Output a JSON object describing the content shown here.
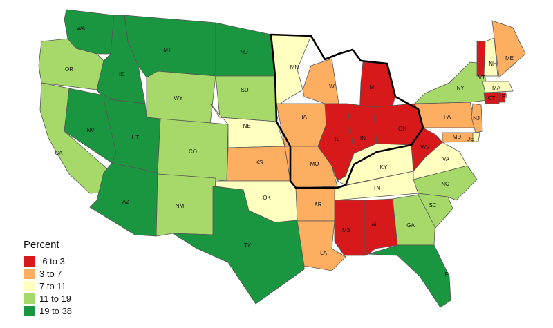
{
  "legend": {
    "title": "Percent",
    "bins": [
      {
        "label": "-6 to 3",
        "color": "#d7191c"
      },
      {
        "label": "3 to 7",
        "color": "#fdae61"
      },
      {
        "label": "7 to 11",
        "color": "#ffffbf"
      },
      {
        "label": "11 to 19",
        "color": "#a6d96a"
      },
      {
        "label": "19 to 38",
        "color": "#1a9641"
      }
    ]
  },
  "states": [
    {
      "abbr": "WA",
      "bin": 4
    },
    {
      "abbr": "OR",
      "bin": 3
    },
    {
      "abbr": "CA",
      "bin": 3
    },
    {
      "abbr": "ID",
      "bin": 4
    },
    {
      "abbr": "NV",
      "bin": 4
    },
    {
      "abbr": "MT",
      "bin": 4
    },
    {
      "abbr": "WY",
      "bin": 3
    },
    {
      "abbr": "UT",
      "bin": 4
    },
    {
      "abbr": "AZ",
      "bin": 4
    },
    {
      "abbr": "CO",
      "bin": 3
    },
    {
      "abbr": "NM",
      "bin": 3
    },
    {
      "abbr": "ND",
      "bin": 4
    },
    {
      "abbr": "SD",
      "bin": 3
    },
    {
      "abbr": "NE",
      "bin": 2
    },
    {
      "abbr": "KS",
      "bin": 1
    },
    {
      "abbr": "OK",
      "bin": 2
    },
    {
      "abbr": "TX",
      "bin": 4
    },
    {
      "abbr": "MN",
      "bin": 2
    },
    {
      "abbr": "IA",
      "bin": 1
    },
    {
      "abbr": "MO",
      "bin": 1
    },
    {
      "abbr": "AR",
      "bin": 1
    },
    {
      "abbr": "LA",
      "bin": 1
    },
    {
      "abbr": "WI",
      "bin": 1
    },
    {
      "abbr": "IL",
      "bin": 0
    },
    {
      "abbr": "MI",
      "bin": 0
    },
    {
      "abbr": "IN",
      "bin": 0
    },
    {
      "abbr": "OH",
      "bin": 0
    },
    {
      "abbr": "KY",
      "bin": 2
    },
    {
      "abbr": "TN",
      "bin": 2
    },
    {
      "abbr": "MS",
      "bin": 0
    },
    {
      "abbr": "AL",
      "bin": 0
    },
    {
      "abbr": "GA",
      "bin": 3
    },
    {
      "abbr": "FL",
      "bin": 4
    },
    {
      "abbr": "SC",
      "bin": 3
    },
    {
      "abbr": "NC",
      "bin": 3
    },
    {
      "abbr": "VA",
      "bin": 2
    },
    {
      "abbr": "WV",
      "bin": 0
    },
    {
      "abbr": "PA",
      "bin": 1
    },
    {
      "abbr": "NY",
      "bin": 3
    },
    {
      "abbr": "VT",
      "bin": 0
    },
    {
      "abbr": "NH",
      "bin": 2
    },
    {
      "abbr": "ME",
      "bin": 1
    },
    {
      "abbr": "MA",
      "bin": 2
    },
    {
      "abbr": "CT",
      "bin": 0
    },
    {
      "abbr": "RI",
      "bin": 0
    },
    {
      "abbr": "NJ",
      "bin": 1
    },
    {
      "abbr": "MD",
      "bin": 1
    },
    {
      "abbr": "DE",
      "bin": 2
    }
  ]
}
